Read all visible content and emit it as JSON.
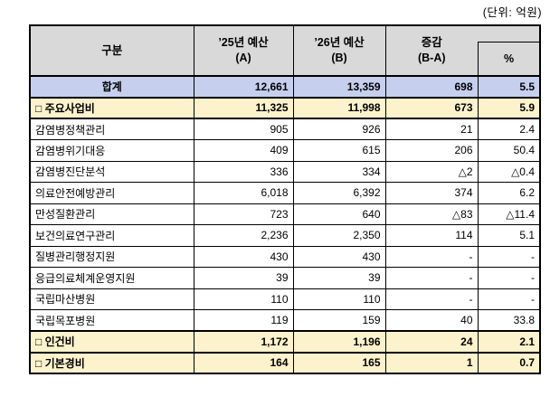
{
  "unit_label": "(단위: 억원)",
  "colors": {
    "header_bg": "#D9D9D9",
    "total_row_bg": "#C6CFED",
    "section_row_bg": "#FCF2CC",
    "border": "#000000"
  },
  "table": {
    "header": {
      "category": "구분",
      "budget_a": "’25년 예산\n(A)",
      "budget_b": "’26년 예산\n(B)",
      "diff": "증감\n(B-A)",
      "pct": "%"
    },
    "rows": [
      {
        "type": "total",
        "label": "합계",
        "a": "12,661",
        "b": "13,359",
        "diff": "698",
        "pct": "5.5"
      },
      {
        "type": "section",
        "label": "□ 주요사업비",
        "a": "11,325",
        "b": "11,998",
        "diff": "673",
        "pct": "5.9"
      },
      {
        "type": "detail",
        "label": "감염병정책관리",
        "a": "905",
        "b": "926",
        "diff": "21",
        "pct": "2.4"
      },
      {
        "type": "detail",
        "label": "감염병위기대응",
        "a": "409",
        "b": "615",
        "diff": "206",
        "pct": "50.4"
      },
      {
        "type": "detail",
        "label": "감염병진단분석",
        "a": "336",
        "b": "334",
        "diff": "△2",
        "pct": "△0.4"
      },
      {
        "type": "detail",
        "label": "의료안전예방관리",
        "a": "6,018",
        "b": "6,392",
        "diff": "374",
        "pct": "6.2"
      },
      {
        "type": "detail",
        "label": "만성질환관리",
        "a": "723",
        "b": "640",
        "diff": "△83",
        "pct": "△11.4"
      },
      {
        "type": "detail",
        "label": "보건의료연구관리",
        "a": "2,236",
        "b": "2,350",
        "diff": "114",
        "pct": "5.1"
      },
      {
        "type": "detail",
        "label": "질병관리행정지원",
        "a": "430",
        "b": "430",
        "diff": "-",
        "pct": "-"
      },
      {
        "type": "detail",
        "label": "응급의료체계운영지원",
        "a": "39",
        "b": "39",
        "diff": "-",
        "pct": "-"
      },
      {
        "type": "detail",
        "label": "국립마산병원",
        "a": "110",
        "b": "110",
        "diff": "-",
        "pct": "-"
      },
      {
        "type": "detail",
        "label": "국립목포병원",
        "a": "119",
        "b": "159",
        "diff": "40",
        "pct": "33.8"
      },
      {
        "type": "section",
        "label": "□ 인건비",
        "a": "1,172",
        "b": "1,196",
        "diff": "24",
        "pct": "2.1"
      },
      {
        "type": "section",
        "label": "□ 기본경비",
        "a": "164",
        "b": "165",
        "diff": "1",
        "pct": "0.7"
      }
    ]
  }
}
